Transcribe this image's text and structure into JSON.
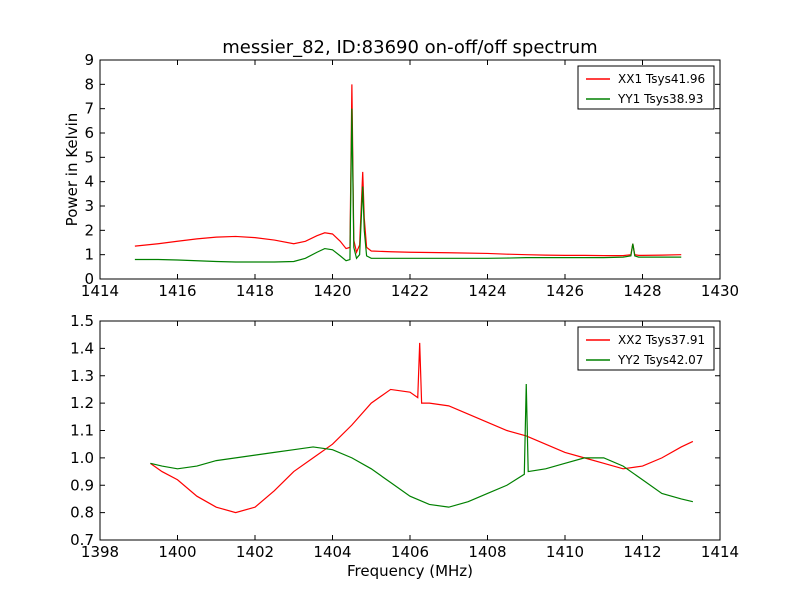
{
  "figure": {
    "title": "messier_82, ID:83690 on-off/off spectrum",
    "xlabel": "Frequency (MHz)"
  },
  "chart_data": [
    {
      "type": "line",
      "title": "messier_82, ID:83690 on-off/off spectrum",
      "xlabel": "",
      "ylabel": "Power in Kelvin",
      "xlim": [
        1414,
        1430
      ],
      "ylim": [
        0,
        9
      ],
      "xticks": [
        1414,
        1416,
        1418,
        1420,
        1422,
        1424,
        1426,
        1428,
        1430
      ],
      "yticks": [
        0,
        1,
        2,
        3,
        4,
        5,
        6,
        7,
        8,
        9
      ],
      "grid": false,
      "legend_position": "top-right",
      "series": [
        {
          "name": "XX1 Tsys41.96",
          "color": "#ff0000",
          "x": [
            1414.9,
            1415.5,
            1416.0,
            1416.5,
            1417.0,
            1417.5,
            1418.0,
            1418.5,
            1419.0,
            1419.3,
            1419.6,
            1419.8,
            1420.0,
            1420.2,
            1420.35,
            1420.45,
            1420.5,
            1420.55,
            1420.62,
            1420.7,
            1420.78,
            1420.82,
            1420.88,
            1421.0,
            1421.5,
            1422.0,
            1423.0,
            1424.0,
            1424.5,
            1425.0,
            1425.5,
            1426.0,
            1426.5,
            1427.0,
            1427.5,
            1427.7,
            1427.75,
            1427.8,
            1427.9,
            1428.0,
            1428.5,
            1429.0
          ],
          "values": [
            1.35,
            1.45,
            1.55,
            1.65,
            1.72,
            1.75,
            1.7,
            1.6,
            1.45,
            1.55,
            1.78,
            1.9,
            1.85,
            1.55,
            1.25,
            1.3,
            8.0,
            1.6,
            1.1,
            1.4,
            4.4,
            2.5,
            1.3,
            1.15,
            1.12,
            1.1,
            1.08,
            1.05,
            1.02,
            1.0,
            0.98,
            0.97,
            0.97,
            0.96,
            0.96,
            1.0,
            1.45,
            1.0,
            0.97,
            0.97,
            0.98,
            1.0
          ]
        },
        {
          "name": "YY1 Tsys38.93",
          "color": "#008000",
          "x": [
            1414.9,
            1415.5,
            1416.0,
            1416.5,
            1417.0,
            1417.5,
            1418.0,
            1418.5,
            1419.0,
            1419.3,
            1419.6,
            1419.8,
            1420.0,
            1420.2,
            1420.35,
            1420.45,
            1420.5,
            1420.55,
            1420.62,
            1420.7,
            1420.78,
            1420.82,
            1420.88,
            1421.0,
            1421.5,
            1422.0,
            1423.0,
            1424.0,
            1424.5,
            1425.0,
            1425.5,
            1426.0,
            1426.5,
            1427.0,
            1427.5,
            1427.7,
            1427.75,
            1427.8,
            1427.9,
            1428.0,
            1428.5,
            1429.0
          ],
          "values": [
            0.8,
            0.8,
            0.78,
            0.75,
            0.72,
            0.7,
            0.7,
            0.7,
            0.72,
            0.85,
            1.1,
            1.25,
            1.2,
            0.95,
            0.75,
            0.8,
            7.0,
            1.3,
            0.85,
            1.0,
            3.8,
            2.0,
            0.95,
            0.85,
            0.85,
            0.85,
            0.85,
            0.85,
            0.86,
            0.88,
            0.88,
            0.88,
            0.88,
            0.88,
            0.9,
            0.95,
            1.45,
            0.95,
            0.9,
            0.9,
            0.9,
            0.9
          ]
        }
      ]
    },
    {
      "type": "line",
      "title": "",
      "xlabel": "Frequency (MHz)",
      "ylabel": "",
      "xlim": [
        1398,
        1414
      ],
      "ylim": [
        0.7,
        1.5
      ],
      "xticks": [
        1398,
        1400,
        1402,
        1404,
        1406,
        1408,
        1410,
        1412,
        1414
      ],
      "yticks": [
        0.7,
        0.8,
        0.9,
        1.0,
        1.1,
        1.2,
        1.3,
        1.4,
        1.5
      ],
      "grid": false,
      "legend_position": "top-right",
      "series": [
        {
          "name": "XX2 Tsys37.91",
          "color": "#ff0000",
          "x": [
            1399.3,
            1399.6,
            1400.0,
            1400.5,
            1401.0,
            1401.5,
            1402.0,
            1402.5,
            1403.0,
            1403.5,
            1404.0,
            1404.5,
            1405.0,
            1405.5,
            1406.0,
            1406.2,
            1406.25,
            1406.3,
            1406.5,
            1407.0,
            1407.5,
            1408.0,
            1408.5,
            1409.0,
            1409.5,
            1410.0,
            1410.5,
            1411.0,
            1411.5,
            1412.0,
            1412.5,
            1413.0,
            1413.3
          ],
          "values": [
            0.98,
            0.95,
            0.92,
            0.86,
            0.82,
            0.8,
            0.82,
            0.88,
            0.95,
            1.0,
            1.05,
            1.12,
            1.2,
            1.25,
            1.24,
            1.22,
            1.42,
            1.2,
            1.2,
            1.19,
            1.16,
            1.13,
            1.1,
            1.08,
            1.05,
            1.02,
            1.0,
            0.98,
            0.96,
            0.97,
            1.0,
            1.04,
            1.06
          ]
        },
        {
          "name": "YY2 Tsys42.07",
          "color": "#008000",
          "x": [
            1399.3,
            1399.6,
            1400.0,
            1400.5,
            1401.0,
            1401.5,
            1402.0,
            1402.5,
            1403.0,
            1403.5,
            1404.0,
            1404.5,
            1405.0,
            1405.5,
            1406.0,
            1406.5,
            1407.0,
            1407.5,
            1408.0,
            1408.5,
            1408.95,
            1409.0,
            1409.05,
            1409.5,
            1410.0,
            1410.5,
            1411.0,
            1411.5,
            1412.0,
            1412.5,
            1413.0,
            1413.3
          ],
          "values": [
            0.98,
            0.97,
            0.96,
            0.97,
            0.99,
            1.0,
            1.01,
            1.02,
            1.03,
            1.04,
            1.03,
            1.0,
            0.96,
            0.91,
            0.86,
            0.83,
            0.82,
            0.84,
            0.87,
            0.9,
            0.94,
            1.27,
            0.95,
            0.96,
            0.98,
            1.0,
            1.0,
            0.97,
            0.92,
            0.87,
            0.85,
            0.84
          ]
        }
      ]
    }
  ]
}
